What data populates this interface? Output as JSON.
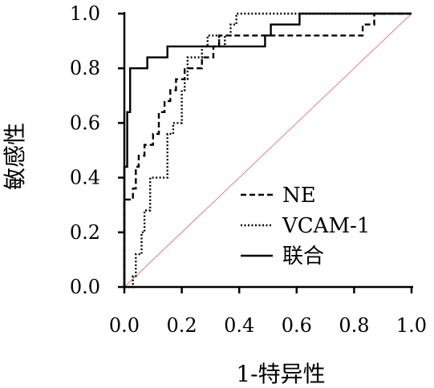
{
  "chart_data": {
    "type": "line",
    "title": "",
    "xlabel": "1-特异性",
    "ylabel": "敏感性",
    "xlim": [
      0,
      1
    ],
    "ylim": [
      0,
      1
    ],
    "x_ticks": [
      "0.0",
      "0.2",
      "0.4",
      "0.6",
      "0.8",
      "1.0"
    ],
    "y_ticks": [
      "0.0",
      "0.2",
      "0.4",
      "0.6",
      "0.8",
      "1.0"
    ],
    "grid": false,
    "legend_position": "bottom-right",
    "reference_line": {
      "x": [
        0,
        1
      ],
      "y": [
        0,
        1
      ],
      "color": "#e08080"
    },
    "series": [
      {
        "name": "NE",
        "style": "dashed",
        "color": "#000000",
        "x": [
          0,
          0,
          0.03,
          0.03,
          0.04,
          0.04,
          0.05,
          0.05,
          0.07,
          0.07,
          0.1,
          0.1,
          0.12,
          0.12,
          0.14,
          0.14,
          0.16,
          0.16,
          0.18,
          0.18,
          0.21,
          0.21,
          0.24,
          0.24,
          0.27,
          0.27,
          0.31,
          0.31,
          0.33,
          0.33,
          0.5,
          0.5,
          0.83,
          0.83,
          0.87,
          0.87,
          1
        ],
        "y": [
          0,
          0.32,
          0.32,
          0.36,
          0.36,
          0.44,
          0.44,
          0.48,
          0.48,
          0.52,
          0.52,
          0.56,
          0.56,
          0.64,
          0.64,
          0.68,
          0.68,
          0.72,
          0.72,
          0.76,
          0.76,
          0.8,
          0.8,
          0.8,
          0.8,
          0.84,
          0.84,
          0.88,
          0.88,
          0.92,
          0.92,
          0.92,
          0.92,
          0.96,
          0.96,
          1.0,
          1.0
        ]
      },
      {
        "name": "VCAM-1",
        "style": "dotted",
        "color": "#000000",
        "x": [
          0,
          0.03,
          0.03,
          0.04,
          0.04,
          0.06,
          0.06,
          0.07,
          0.07,
          0.09,
          0.09,
          0.15,
          0.15,
          0.17,
          0.17,
          0.2,
          0.2,
          0.21,
          0.21,
          0.22,
          0.22,
          0.27,
          0.27,
          0.29,
          0.29,
          0.33,
          0.33,
          0.35,
          0.35,
          0.37,
          0.37,
          0.39,
          0.39,
          0.62,
          0.62,
          1
        ],
        "y": [
          0,
          0,
          0.04,
          0.04,
          0.12,
          0.12,
          0.2,
          0.2,
          0.28,
          0.28,
          0.4,
          0.4,
          0.56,
          0.56,
          0.6,
          0.6,
          0.72,
          0.72,
          0.76,
          0.76,
          0.84,
          0.84,
          0.88,
          0.88,
          0.92,
          0.92,
          0.88,
          0.88,
          0.92,
          0.92,
          0.96,
          0.96,
          1.0,
          1.0,
          1.0,
          1.0
        ]
      },
      {
        "name": "联合",
        "style": "solid",
        "color": "#000000",
        "x": [
          0,
          0,
          0.01,
          0.01,
          0.02,
          0.02,
          0.03,
          0.03,
          0.08,
          0.08,
          0.15,
          0.15,
          0.33,
          0.33,
          0.49,
          0.49,
          0.51,
          0.51,
          0.61,
          0.61,
          1
        ],
        "y": [
          0,
          0.44,
          0.44,
          0.64,
          0.64,
          0.8,
          0.8,
          0.8,
          0.8,
          0.84,
          0.84,
          0.88,
          0.88,
          0.88,
          0.88,
          0.92,
          0.92,
          0.96,
          0.96,
          1.0,
          1.0
        ]
      }
    ]
  }
}
